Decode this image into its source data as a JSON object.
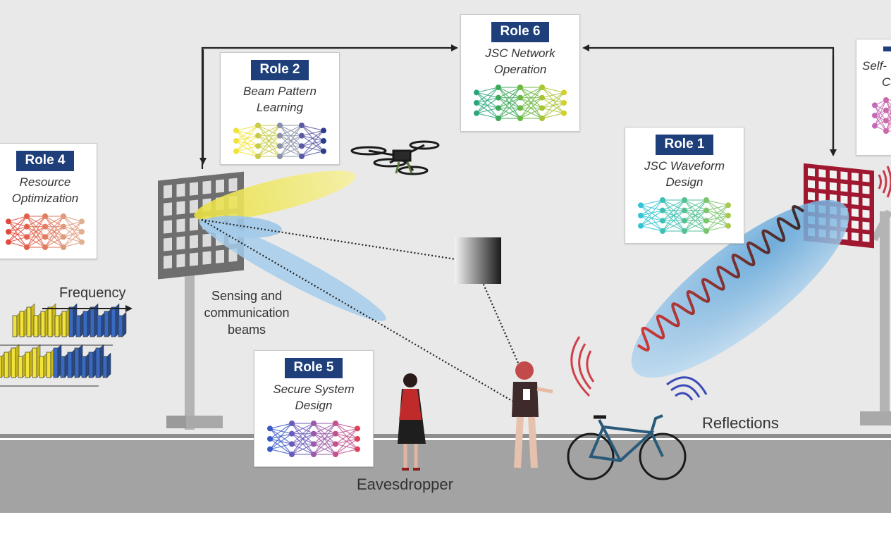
{
  "roles": [
    {
      "id": "role2",
      "badge": "Role 2",
      "line1": "Beam Pattern",
      "line2": "Learning",
      "colors": [
        "#f2e23c",
        "#c8cc48",
        "#8a90a8",
        "#5a5aa6",
        "#2c3c8a"
      ]
    },
    {
      "id": "role6",
      "badge": "Role 6",
      "line1": "JSC Network",
      "line2": "Operation",
      "colors": [
        "#2aa57a",
        "#3da85a",
        "#6ab840",
        "#a8c432",
        "#d4cf2a"
      ]
    },
    {
      "id": "role4",
      "badge": "Role 4",
      "line1": "Resource",
      "line2": "Optimization",
      "colors": [
        "#e04a3c",
        "#e0624a",
        "#e07c60",
        "#e09a7a",
        "#e0b090"
      ]
    },
    {
      "id": "role1",
      "badge": "Role 1",
      "line1": "JSC Waveform",
      "line2": "Design",
      "colors": [
        "#34c4d4",
        "#3cc0b4",
        "#52c090",
        "#7ac46c",
        "#a8c84c"
      ]
    },
    {
      "id": "role5",
      "badge": "Role 5",
      "line1": "Secure System",
      "line2": "Design",
      "colors": [
        "#3a5ac8",
        "#6a5abc",
        "#9a5aa8",
        "#c4508c",
        "#e0405a"
      ]
    },
    {
      "id": "role3",
      "badge": "",
      "line1": "Self-",
      "line2": "Ca",
      "colors": [
        "#c66ab8",
        "#c86aa8",
        "#cc6a9a",
        "#d06a8a",
        "#d46a7a"
      ]
    }
  ],
  "labels": {
    "frequency": "Frequency",
    "beams_1": "Sensing and",
    "beams_2": "communication",
    "beams_3": "beams",
    "eavesdropper": "Eavesdropper",
    "reflections": "Reflections"
  }
}
